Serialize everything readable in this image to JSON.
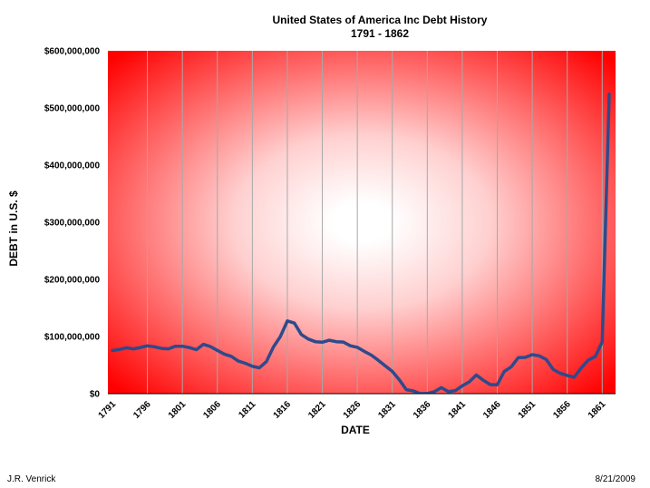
{
  "chart_data": {
    "type": "line",
    "title": "United States of America Inc Debt History",
    "subtitle": "1791 - 1862",
    "xlabel": "DATE",
    "ylabel": "DEBT in U.S. $",
    "ylim": [
      0,
      600000000
    ],
    "ytick_values": [
      0,
      100000000,
      200000000,
      300000000,
      400000000,
      500000000,
      600000000
    ],
    "ytick_labels": [
      "$0",
      "$100,000,000",
      "$200,000,000",
      "$300,000,000",
      "$400,000,000",
      "$500,000,000",
      "$600,000,000"
    ],
    "xlim": [
      1791,
      1862
    ],
    "xtick_values": [
      1791,
      1796,
      1801,
      1806,
      1811,
      1816,
      1821,
      1826,
      1831,
      1836,
      1841,
      1846,
      1851,
      1856,
      1861
    ],
    "xtick_labels": [
      "1791",
      "1796",
      "1801",
      "1806",
      "1811",
      "1816",
      "1821",
      "1826",
      "1831",
      "1836",
      "1841",
      "1846",
      "1851",
      "1856",
      "1861"
    ],
    "grid": "vertical",
    "series": [
      {
        "name": "Debt",
        "x": [
          1791,
          1792,
          1793,
          1794,
          1795,
          1796,
          1797,
          1798,
          1799,
          1800,
          1801,
          1802,
          1803,
          1804,
          1805,
          1806,
          1807,
          1808,
          1809,
          1810,
          1811,
          1812,
          1813,
          1814,
          1815,
          1816,
          1817,
          1818,
          1819,
          1820,
          1821,
          1822,
          1823,
          1824,
          1825,
          1826,
          1827,
          1828,
          1829,
          1830,
          1831,
          1832,
          1833,
          1834,
          1835,
          1836,
          1837,
          1838,
          1839,
          1840,
          1841,
          1842,
          1843,
          1844,
          1845,
          1846,
          1847,
          1848,
          1849,
          1850,
          1851,
          1852,
          1853,
          1854,
          1855,
          1856,
          1857,
          1858,
          1859,
          1860,
          1861,
          1862
        ],
        "values": [
          75463477,
          77227925,
          80358634,
          78427405,
          80747587,
          83762172,
          82064479,
          79228529,
          78408670,
          82976294,
          83038051,
          80712632,
          77054686,
          86427121,
          82312151,
          75723271,
          69218399,
          65196318,
          57023192,
          53173218,
          48005588,
          45209738,
          55962828,
          81487846,
          99833660,
          127334934,
          123491965,
          103466634,
          95529648,
          91015566,
          89987428,
          93546677,
          90875877,
          90269778,
          83788433,
          81054060,
          73987357,
          67475043,
          58421414,
          48565406,
          39123192,
          24322235,
          7001699,
          4760082,
          37513,
          336958,
          3308124,
          10434221,
          3573344,
          5250876,
          13594481,
          20601226,
          32742922,
          23461653,
          15925303,
          15550203,
          38826535,
          47044862,
          63061859,
          63452774,
          68304797,
          66199342,
          59803118,
          42242222,
          35586957,
          31972538,
          28699832,
          44911882,
          58496838,
          64842288,
          90580874,
          524176412
        ],
        "color": "#2e4a8c"
      }
    ]
  },
  "footer": {
    "author": "J.R. Venrick",
    "date": "8/21/2009"
  },
  "colors": {
    "plot_edge": "#ff0000",
    "plot_center": "#ffffff",
    "line": "#2e4a8c",
    "gridline": "#a8a8a8"
  }
}
